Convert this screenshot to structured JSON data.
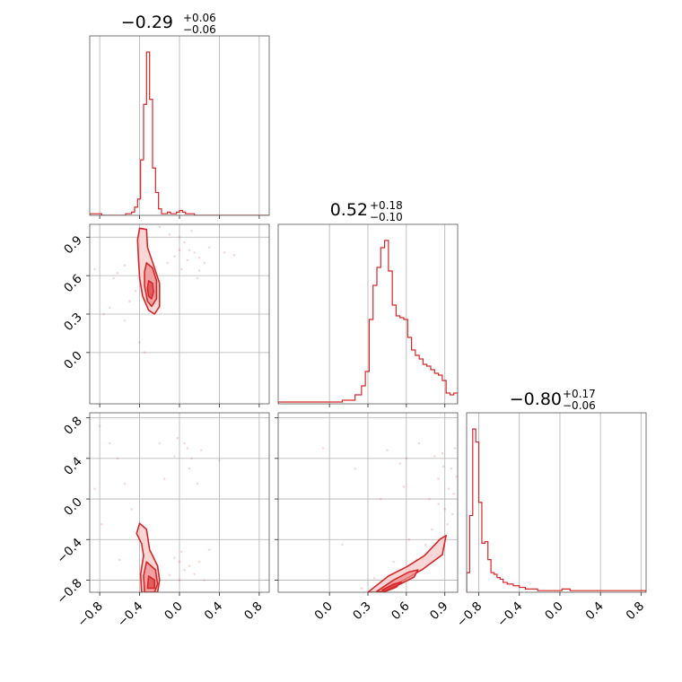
{
  "colors": {
    "accent": "#d62728",
    "fill_light": "#f7c9c9",
    "fill_mid": "#ec8f8f",
    "grid": "#b0b0b0",
    "frame": "#555555"
  },
  "chart_data": {
    "type": "corner",
    "parameters": [
      {
        "id": "p1",
        "range": [
          -0.9,
          0.9
        ],
        "ticks": [
          -0.8,
          -0.4,
          0.0,
          0.4,
          0.8
        ],
        "tick_labels": [
          "−0.8",
          "−0.4",
          "0.0",
          "0.4",
          "0.8"
        ],
        "title": {
          "median": "−0.29",
          "plus": "+0.06",
          "minus": "−0.06"
        }
      },
      {
        "id": "p2",
        "range": [
          -0.4,
          1.0
        ],
        "ticks": [
          0.0,
          0.3,
          0.6,
          0.9
        ],
        "tick_labels": [
          "0.0",
          "0.3",
          "0.6",
          "0.9"
        ],
        "title": {
          "median": "0.52",
          "plus": "+0.18",
          "minus": "−0.10"
        }
      },
      {
        "id": "p3",
        "range": [
          -0.92,
          0.85
        ],
        "ticks": [
          -0.8,
          -0.4,
          0.0,
          0.4,
          0.8
        ],
        "tick_labels": [
          "−0.8",
          "−0.4",
          "0.0",
          "0.4",
          "0.8"
        ],
        "title": {
          "median": "−0.80",
          "plus": "+0.17",
          "minus": "−0.06"
        }
      }
    ],
    "histograms": [
      {
        "param": "p1",
        "bin_edges": [
          -0.9,
          -0.84,
          -0.78,
          -0.72,
          -0.66,
          -0.6,
          -0.54,
          -0.48,
          -0.45,
          -0.42,
          -0.39,
          -0.36,
          -0.33,
          -0.3,
          -0.27,
          -0.24,
          -0.21,
          -0.18,
          -0.15,
          -0.12,
          -0.09,
          -0.06,
          -0.03,
          0.0,
          0.03,
          0.06,
          0.09,
          0.12,
          0.15,
          0.18,
          0.24,
          0.3,
          0.4,
          0.55,
          0.7,
          0.9
        ],
        "counts": [
          0.01,
          0.01,
          0,
          0,
          0,
          0,
          0.01,
          0.02,
          0.05,
          0.1,
          0.34,
          0.68,
          1.0,
          0.71,
          0.29,
          0.14,
          0.04,
          0.01,
          0.01,
          0.02,
          0.01,
          0.01,
          0.02,
          0.03,
          0.02,
          0.01,
          0.01,
          0.01,
          0,
          0,
          0,
          0,
          0,
          0,
          0
        ]
      },
      {
        "param": "p2",
        "bin_edges": [
          -0.4,
          -0.3,
          -0.2,
          -0.1,
          0.0,
          0.1,
          0.15,
          0.2,
          0.25,
          0.28,
          0.31,
          0.34,
          0.37,
          0.4,
          0.43,
          0.46,
          0.49,
          0.52,
          0.55,
          0.58,
          0.61,
          0.64,
          0.67,
          0.7,
          0.73,
          0.76,
          0.79,
          0.82,
          0.85,
          0.88,
          0.91,
          0.94,
          0.97,
          1.0
        ],
        "counts": [
          0.01,
          0.01,
          0.01,
          0.01,
          0.01,
          0.02,
          0.02,
          0.05,
          0.1,
          0.18,
          0.47,
          0.66,
          0.76,
          0.87,
          0.91,
          0.74,
          0.55,
          0.49,
          0.48,
          0.47,
          0.37,
          0.3,
          0.27,
          0.25,
          0.22,
          0.21,
          0.19,
          0.17,
          0.16,
          0.13,
          0.06,
          0.05,
          0.06
        ]
      },
      {
        "param": "p3",
        "bin_edges": [
          -0.92,
          -0.89,
          -0.86,
          -0.83,
          -0.8,
          -0.77,
          -0.74,
          -0.71,
          -0.68,
          -0.65,
          -0.62,
          -0.59,
          -0.56,
          -0.52,
          -0.46,
          -0.4,
          -0.34,
          -0.28,
          -0.22,
          -0.16,
          -0.1,
          -0.04,
          0.02,
          0.1,
          0.2,
          0.3,
          0.4,
          0.55,
          0.7,
          0.85
        ],
        "counts": [
          0.12,
          0.47,
          1.0,
          0.92,
          0.55,
          0.3,
          0.31,
          0.2,
          0.12,
          0.11,
          0.09,
          0.08,
          0.06,
          0.05,
          0.04,
          0.03,
          0.02,
          0.02,
          0.01,
          0.01,
          0.01,
          0.01,
          0.02,
          0.01,
          0.01,
          0.01,
          0.01,
          0.01,
          0.01
        ]
      }
    ],
    "contours_2d": [
      {
        "x": "p1",
        "y": "p2",
        "levels": [
          {
            "name": "outer",
            "points": [
              [
                -0.4,
                0.97
              ],
              [
                -0.33,
                0.96
              ],
              [
                -0.32,
                0.82
              ],
              [
                -0.25,
                0.66
              ],
              [
                -0.2,
                0.54
              ],
              [
                -0.2,
                0.36
              ],
              [
                -0.25,
                0.3
              ],
              [
                -0.31,
                0.33
              ],
              [
                -0.37,
                0.44
              ],
              [
                -0.4,
                0.58
              ],
              [
                -0.41,
                0.72
              ],
              [
                -0.42,
                0.88
              ]
            ]
          },
          {
            "name": "mid",
            "points": [
              [
                -0.33,
                0.7
              ],
              [
                -0.27,
                0.66
              ],
              [
                -0.23,
                0.56
              ],
              [
                -0.23,
                0.42
              ],
              [
                -0.28,
                0.36
              ],
              [
                -0.32,
                0.4
              ],
              [
                -0.35,
                0.52
              ],
              [
                -0.35,
                0.63
              ]
            ]
          },
          {
            "name": "inner",
            "points": [
              [
                -0.31,
                0.56
              ],
              [
                -0.27,
                0.54
              ],
              [
                -0.26,
                0.47
              ],
              [
                -0.28,
                0.42
              ],
              [
                -0.31,
                0.44
              ],
              [
                -0.32,
                0.5
              ]
            ]
          }
        ]
      },
      {
        "x": "p1",
        "y": "p3",
        "levels": [
          {
            "name": "outer",
            "points": [
              [
                -0.4,
                -0.24
              ],
              [
                -0.33,
                -0.3
              ],
              [
                -0.3,
                -0.5
              ],
              [
                -0.22,
                -0.66
              ],
              [
                -0.2,
                -0.8
              ],
              [
                -0.22,
                -0.92
              ],
              [
                -0.38,
                -0.92
              ],
              [
                -0.39,
                -0.74
              ],
              [
                -0.36,
                -0.56
              ],
              [
                -0.38,
                -0.44
              ],
              [
                -0.43,
                -0.34
              ]
            ]
          },
          {
            "name": "mid",
            "points": [
              [
                -0.33,
                -0.62
              ],
              [
                -0.24,
                -0.7
              ],
              [
                -0.22,
                -0.84
              ],
              [
                -0.25,
                -0.92
              ],
              [
                -0.35,
                -0.92
              ],
              [
                -0.36,
                -0.76
              ]
            ]
          },
          {
            "name": "inner",
            "points": [
              [
                -0.31,
                -0.76
              ],
              [
                -0.25,
                -0.8
              ],
              [
                -0.25,
                -0.88
              ],
              [
                -0.32,
                -0.88
              ]
            ]
          }
        ]
      },
      {
        "x": "p2",
        "y": "p3",
        "levels": [
          {
            "name": "outer",
            "points": [
              [
                0.3,
                -0.92
              ],
              [
                0.46,
                -0.76
              ],
              [
                0.6,
                -0.67
              ],
              [
                0.74,
                -0.56
              ],
              [
                0.86,
                -0.4
              ],
              [
                0.91,
                -0.36
              ],
              [
                0.88,
                -0.55
              ],
              [
                0.72,
                -0.7
              ],
              [
                0.55,
                -0.82
              ],
              [
                0.4,
                -0.92
              ]
            ]
          },
          {
            "name": "mid",
            "points": [
              [
                0.37,
                -0.91
              ],
              [
                0.5,
                -0.8
              ],
              [
                0.62,
                -0.72
              ],
              [
                0.69,
                -0.7
              ],
              [
                0.66,
                -0.77
              ],
              [
                0.52,
                -0.86
              ],
              [
                0.42,
                -0.92
              ]
            ]
          },
          {
            "name": "inner",
            "points": [
              [
                0.41,
                -0.9
              ],
              [
                0.5,
                -0.84
              ],
              [
                0.56,
                -0.82
              ],
              [
                0.52,
                -0.87
              ],
              [
                0.44,
                -0.91
              ]
            ]
          }
        ]
      }
    ],
    "scatter_2d": [
      {
        "x": "p1",
        "y": "p2",
        "points": [
          [
            -0.55,
            0.68
          ],
          [
            -0.62,
            0.62
          ],
          [
            -0.44,
            0.48
          ],
          [
            -0.5,
            0.4
          ],
          [
            -0.7,
            0.35
          ],
          [
            -0.76,
            0.3
          ],
          [
            -0.85,
            0.65
          ],
          [
            -0.66,
            0.58
          ],
          [
            0.0,
            0.9
          ],
          [
            0.05,
            0.86
          ],
          [
            0.1,
            0.8
          ],
          [
            0.15,
            0.78
          ],
          [
            0.2,
            0.74
          ],
          [
            0.25,
            0.7
          ],
          [
            0.08,
            0.72
          ],
          [
            0.0,
            0.8
          ],
          [
            -0.05,
            0.75
          ],
          [
            0.12,
            0.95
          ],
          [
            -0.1,
            0.92
          ],
          [
            0.2,
            0.64
          ],
          [
            0.3,
            0.82
          ],
          [
            0.45,
            0.78
          ],
          [
            0.18,
            0.58
          ],
          [
            -0.12,
            0.7
          ],
          [
            0.02,
            0.65
          ],
          [
            -0.4,
            0.08
          ],
          [
            -0.55,
            0.25
          ],
          [
            -0.35,
            0.0
          ],
          [
            0.55,
            0.76
          ],
          [
            -0.2,
            0.98
          ]
        ]
      },
      {
        "x": "p1",
        "y": "p3",
        "points": [
          [
            -0.8,
            0.72
          ],
          [
            -0.7,
            0.55
          ],
          [
            -0.62,
            0.4
          ],
          [
            -0.55,
            0.15
          ],
          [
            -0.48,
            -0.1
          ],
          [
            -0.85,
            0.1
          ],
          [
            -0.78,
            -0.25
          ],
          [
            -0.6,
            -0.6
          ],
          [
            0.0,
            -0.62
          ],
          [
            0.05,
            -0.7
          ],
          [
            0.1,
            -0.66
          ],
          [
            0.15,
            -0.74
          ],
          [
            -0.05,
            -0.58
          ],
          [
            0.02,
            -0.52
          ],
          [
            0.2,
            -0.62
          ],
          [
            0.25,
            -0.8
          ],
          [
            0.08,
            0.5
          ],
          [
            -0.05,
            0.42
          ],
          [
            0.1,
            0.3
          ],
          [
            -0.15,
            0.2
          ],
          [
            0.05,
            0.55
          ],
          [
            0.12,
            0.4
          ],
          [
            0.3,
            -0.5
          ],
          [
            -0.1,
            -0.75
          ],
          [
            0.0,
            -0.8
          ],
          [
            0.4,
            0.38
          ],
          [
            0.18,
            0.15
          ],
          [
            -0.02,
            0.6
          ],
          [
            0.22,
            0.48
          ],
          [
            -0.2,
            0.55
          ]
        ]
      },
      {
        "x": "p2",
        "y": "p3",
        "points": [
          [
            0.9,
            -0.1
          ],
          [
            0.93,
            0.1
          ],
          [
            0.95,
            0.3
          ],
          [
            0.97,
            0.05
          ],
          [
            0.88,
            0.45
          ],
          [
            0.85,
            0.2
          ],
          [
            0.92,
            -0.25
          ],
          [
            0.8,
            -0.3
          ],
          [
            0.75,
            -0.45
          ],
          [
            0.68,
            -0.6
          ],
          [
            0.6,
            0.4
          ],
          [
            0.55,
            0.35
          ],
          [
            0.45,
            0.48
          ],
          [
            0.7,
            0.55
          ],
          [
            0.98,
            0.5
          ],
          [
            0.35,
            -0.78
          ],
          [
            0.25,
            -0.88
          ],
          [
            0.1,
            -0.45
          ],
          [
            -0.05,
            0.5
          ],
          [
            0.2,
            0.3
          ],
          [
            0.85,
            -0.05
          ],
          [
            0.96,
            -0.15
          ],
          [
            0.62,
            -0.4
          ],
          [
            0.78,
            0.0
          ],
          [
            0.89,
            0.32
          ],
          [
            0.5,
            -0.62
          ],
          [
            0.99,
            0.22
          ],
          [
            0.4,
            0.0
          ],
          [
            0.58,
            0.12
          ],
          [
            0.82,
            0.42
          ]
        ]
      }
    ],
    "grid": true,
    "xlabel": "",
    "ylabel": ""
  }
}
